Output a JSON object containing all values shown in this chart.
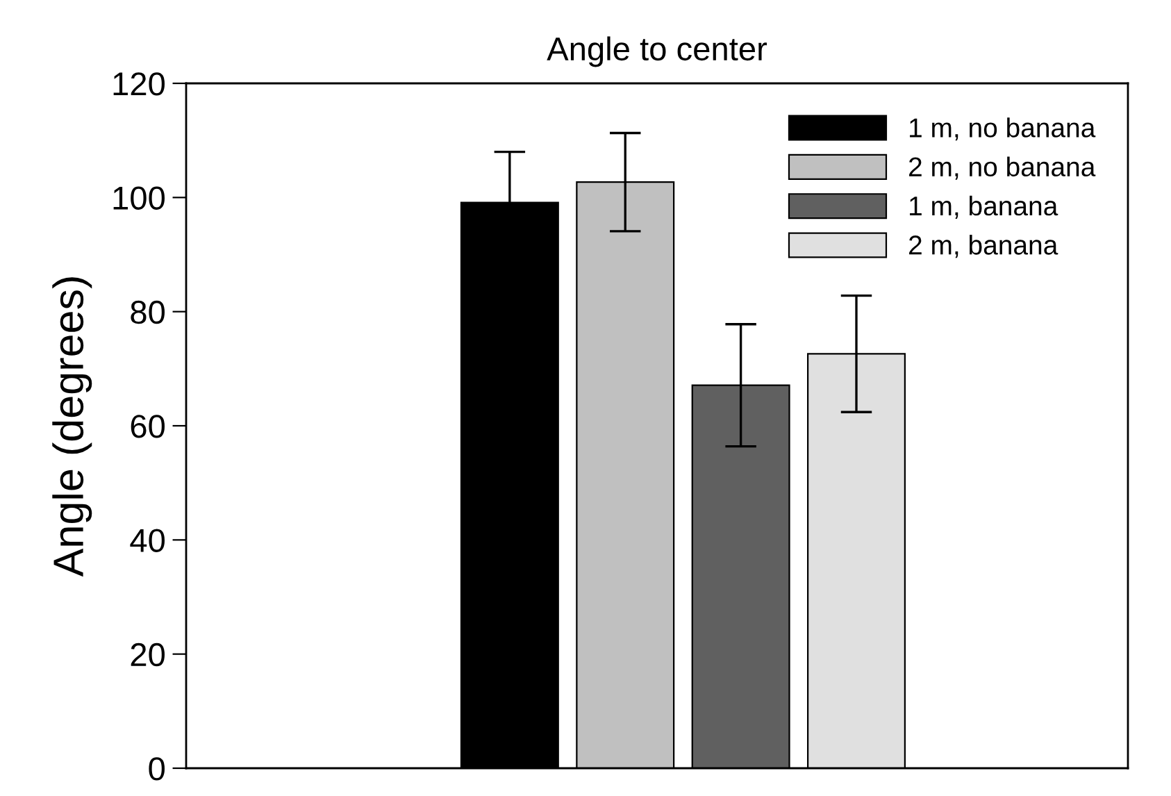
{
  "chart_data": {
    "type": "bar",
    "title": "Angle to center",
    "ylabel": "Angle (degrees)",
    "categories": [
      null
    ],
    "series": [
      {
        "name": "1 m, no banana",
        "color": "#000000",
        "values": [
          99.1
        ],
        "errors": [
          8.9
        ]
      },
      {
        "name": "2 m, no banana",
        "color": "#c0c0c0",
        "values": [
          102.7
        ],
        "errors": [
          8.6
        ]
      },
      {
        "name": "1 m, banana",
        "color": "#606060",
        "values": [
          67.1
        ],
        "errors": [
          10.7
        ]
      },
      {
        "name": "2 m, banana",
        "color": "#e0e0e0",
        "values": [
          72.6
        ],
        "errors": [
          10.2
        ]
      }
    ],
    "ylim": [
      0,
      120
    ],
    "yticks": [
      0,
      20,
      40,
      60,
      80,
      100,
      120
    ],
    "grid": false,
    "legend": "top right",
    "tick_labels": "y"
  }
}
